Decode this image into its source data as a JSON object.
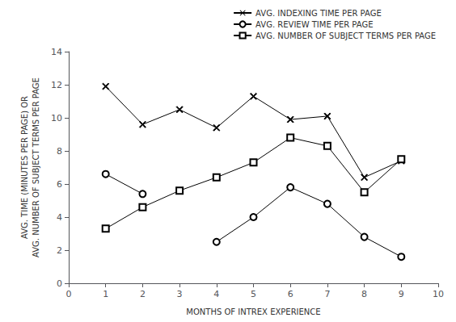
{
  "chart_data": {
    "type": "line",
    "x": [
      1,
      2,
      3,
      4,
      5,
      6,
      7,
      8,
      9
    ],
    "series": [
      {
        "name": "AVG. INDEXING TIME PER PAGE",
        "values": [
          11.9,
          9.6,
          10.5,
          9.4,
          11.3,
          9.9,
          10.1,
          6.4,
          7.4
        ],
        "marker": "x"
      },
      {
        "name": "AVG. REVIEW TIME PER PAGE",
        "values": [
          6.6,
          5.4,
          null,
          2.5,
          4.0,
          5.8,
          4.8,
          2.8,
          1.6
        ],
        "marker": "o"
      },
      {
        "name": "AVG. NUMBER OF SUBJECT TERMS PER PAGE",
        "values": [
          3.3,
          4.6,
          5.6,
          6.4,
          7.3,
          8.8,
          8.3,
          5.5,
          7.5
        ],
        "marker": "s"
      }
    ],
    "color": "black",
    "xlabel": "MONTHS OF INTREX EXPERIENCE",
    "ylabel": "AVG. TIME (MINUTES PER PAGE) OR\nAVG. NUMBER OF SUBJECT TERMS PER PAGE",
    "xlim": [
      0,
      10
    ],
    "ylim": [
      0,
      14
    ],
    "xticks": [
      0,
      1,
      2,
      3,
      4,
      5,
      6,
      7,
      8,
      9,
      10
    ],
    "yticks": [
      0,
      2,
      4,
      6,
      8,
      10,
      12,
      14
    ],
    "grid": false,
    "legend": "upper right"
  }
}
